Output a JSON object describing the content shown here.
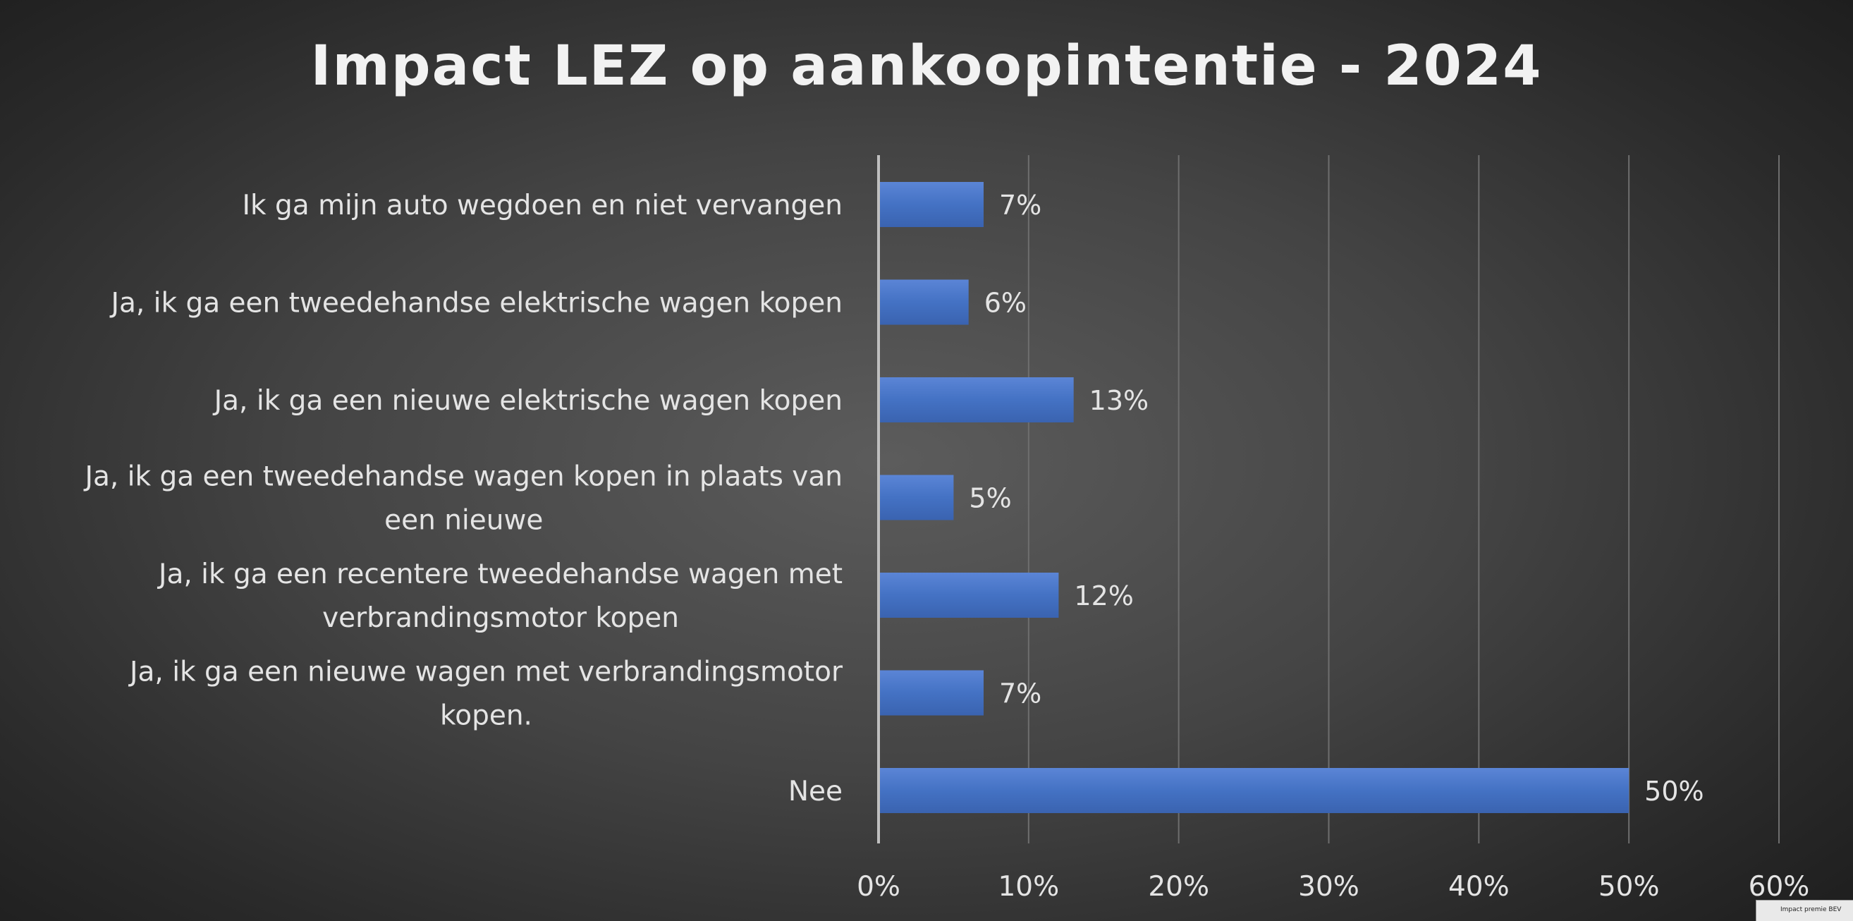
{
  "chart_data": {
    "type": "bar",
    "orientation": "horizontal",
    "title": "Impact LEZ op aankoopintentie - 2024",
    "categories": [
      [
        "Ik ga mijn auto wegdoen en niet vervangen"
      ],
      [
        "Ja, ik ga een tweedehandse elektrische wagen kopen"
      ],
      [
        "Ja, ik ga een nieuwe elektrische wagen kopen"
      ],
      [
        "Ja, ik ga een tweedehandse wagen kopen in plaats van",
        "een nieuwe"
      ],
      [
        "Ja, ik ga een recentere tweedehandse wagen met",
        "verbrandingsmotor kopen"
      ],
      [
        "Ja, ik ga een nieuwe wagen met verbrandingsmotor",
        "kopen."
      ],
      [
        "Nee"
      ]
    ],
    "values": [
      7,
      6,
      13,
      5,
      12,
      7,
      50
    ],
    "value_labels": [
      "7%",
      "6%",
      "13%",
      "5%",
      "12%",
      "7%",
      "50%"
    ],
    "xlim": [
      0,
      60
    ],
    "x_ticks": [
      0,
      10,
      20,
      30,
      40,
      50,
      60
    ],
    "x_tick_labels": [
      "0%",
      "10%",
      "20%",
      "30%",
      "40%",
      "50%",
      "60%"
    ],
    "xlabel": "",
    "ylabel": "",
    "grid": "vertical",
    "legend": "none",
    "colors": {
      "bar": "#4472c4",
      "bar_light": "#5b85d6",
      "bar_dark": "#3a63b0",
      "grid": "#6e6e6e",
      "axis": "#bfbfbf",
      "text": "#e4e4e4"
    }
  },
  "footer_tab": "Impact premie BEV"
}
